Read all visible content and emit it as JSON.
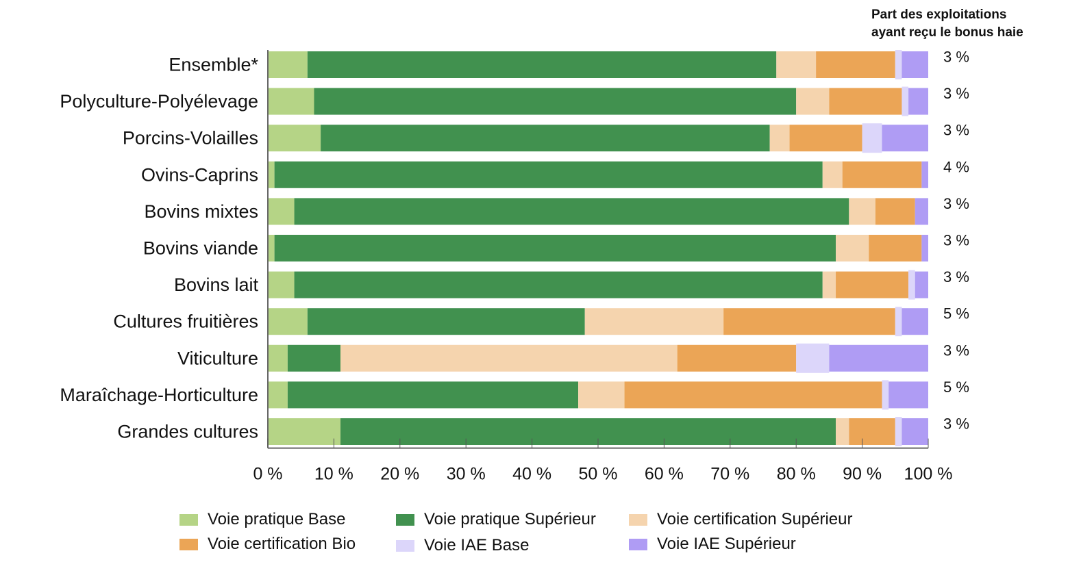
{
  "chart_data": {
    "type": "bar",
    "orientation": "horizontal",
    "stacked": true,
    "title": "",
    "xlabel": "",
    "ylabel": "",
    "xlim": [
      0,
      100
    ],
    "x_ticks": [
      "0 %",
      "10 %",
      "20 %",
      "30 %",
      "40 %",
      "50 %",
      "60 %",
      "70 %",
      "80 %",
      "90 %",
      "100 %"
    ],
    "categories": [
      "Ensemble*",
      "Polyculture-Polyélevage",
      "Porcins-Volailles",
      "Ovins-Caprins",
      "Bovins mixtes",
      "Bovins viande",
      "Bovins lait",
      "Cultures fruitières",
      "Viticulture",
      "Maraîchage-Horticulture",
      "Grandes cultures"
    ],
    "series": [
      {
        "name": "Voie pratique Base",
        "color": "#b5d486",
        "values": [
          6,
          7,
          8,
          1,
          4,
          1,
          4,
          6,
          3,
          3,
          11
        ]
      },
      {
        "name": "Voie pratique Supérieur",
        "color": "#41914f",
        "values": [
          71,
          73,
          68,
          83,
          84,
          85,
          80,
          42,
          8,
          44,
          75
        ]
      },
      {
        "name": "Voie certification Supérieur",
        "color": "#f5d4ae",
        "values": [
          6,
          5,
          3,
          3,
          4,
          5,
          2,
          21,
          51,
          7,
          2
        ]
      },
      {
        "name": "Voie certification Bio",
        "color": "#eba556",
        "values": [
          12,
          11,
          11,
          12,
          6,
          8,
          11,
          26,
          18,
          39,
          7
        ]
      },
      {
        "name": "Voie IAE Base",
        "color": "#dcd6fa",
        "values": [
          1,
          1,
          3,
          0,
          0,
          0,
          1,
          1,
          5,
          1,
          1
        ]
      },
      {
        "name": "Voie IAE Supérieur",
        "color": "#af9cf4",
        "values": [
          4,
          3,
          7,
          1,
          2,
          1,
          2,
          4,
          15,
          6,
          4
        ]
      }
    ],
    "side_annotation": {
      "title_lines": [
        "Part des exploitations",
        "ayant reçu le bonus haie"
      ],
      "values": [
        "3 %",
        "3 %",
        "3 %",
        "4 %",
        "3 %",
        "3 %",
        "3 %",
        "5 %",
        "3 %",
        "5 %",
        "3 %"
      ]
    },
    "legend": {
      "placement": "bottom",
      "items": [
        "Voie pratique Base",
        "Voie pratique Supérieur",
        "Voie certification Supérieur",
        "Voie certification Bio",
        "Voie IAE Base",
        "Voie IAE Supérieur"
      ]
    },
    "grid": false
  }
}
